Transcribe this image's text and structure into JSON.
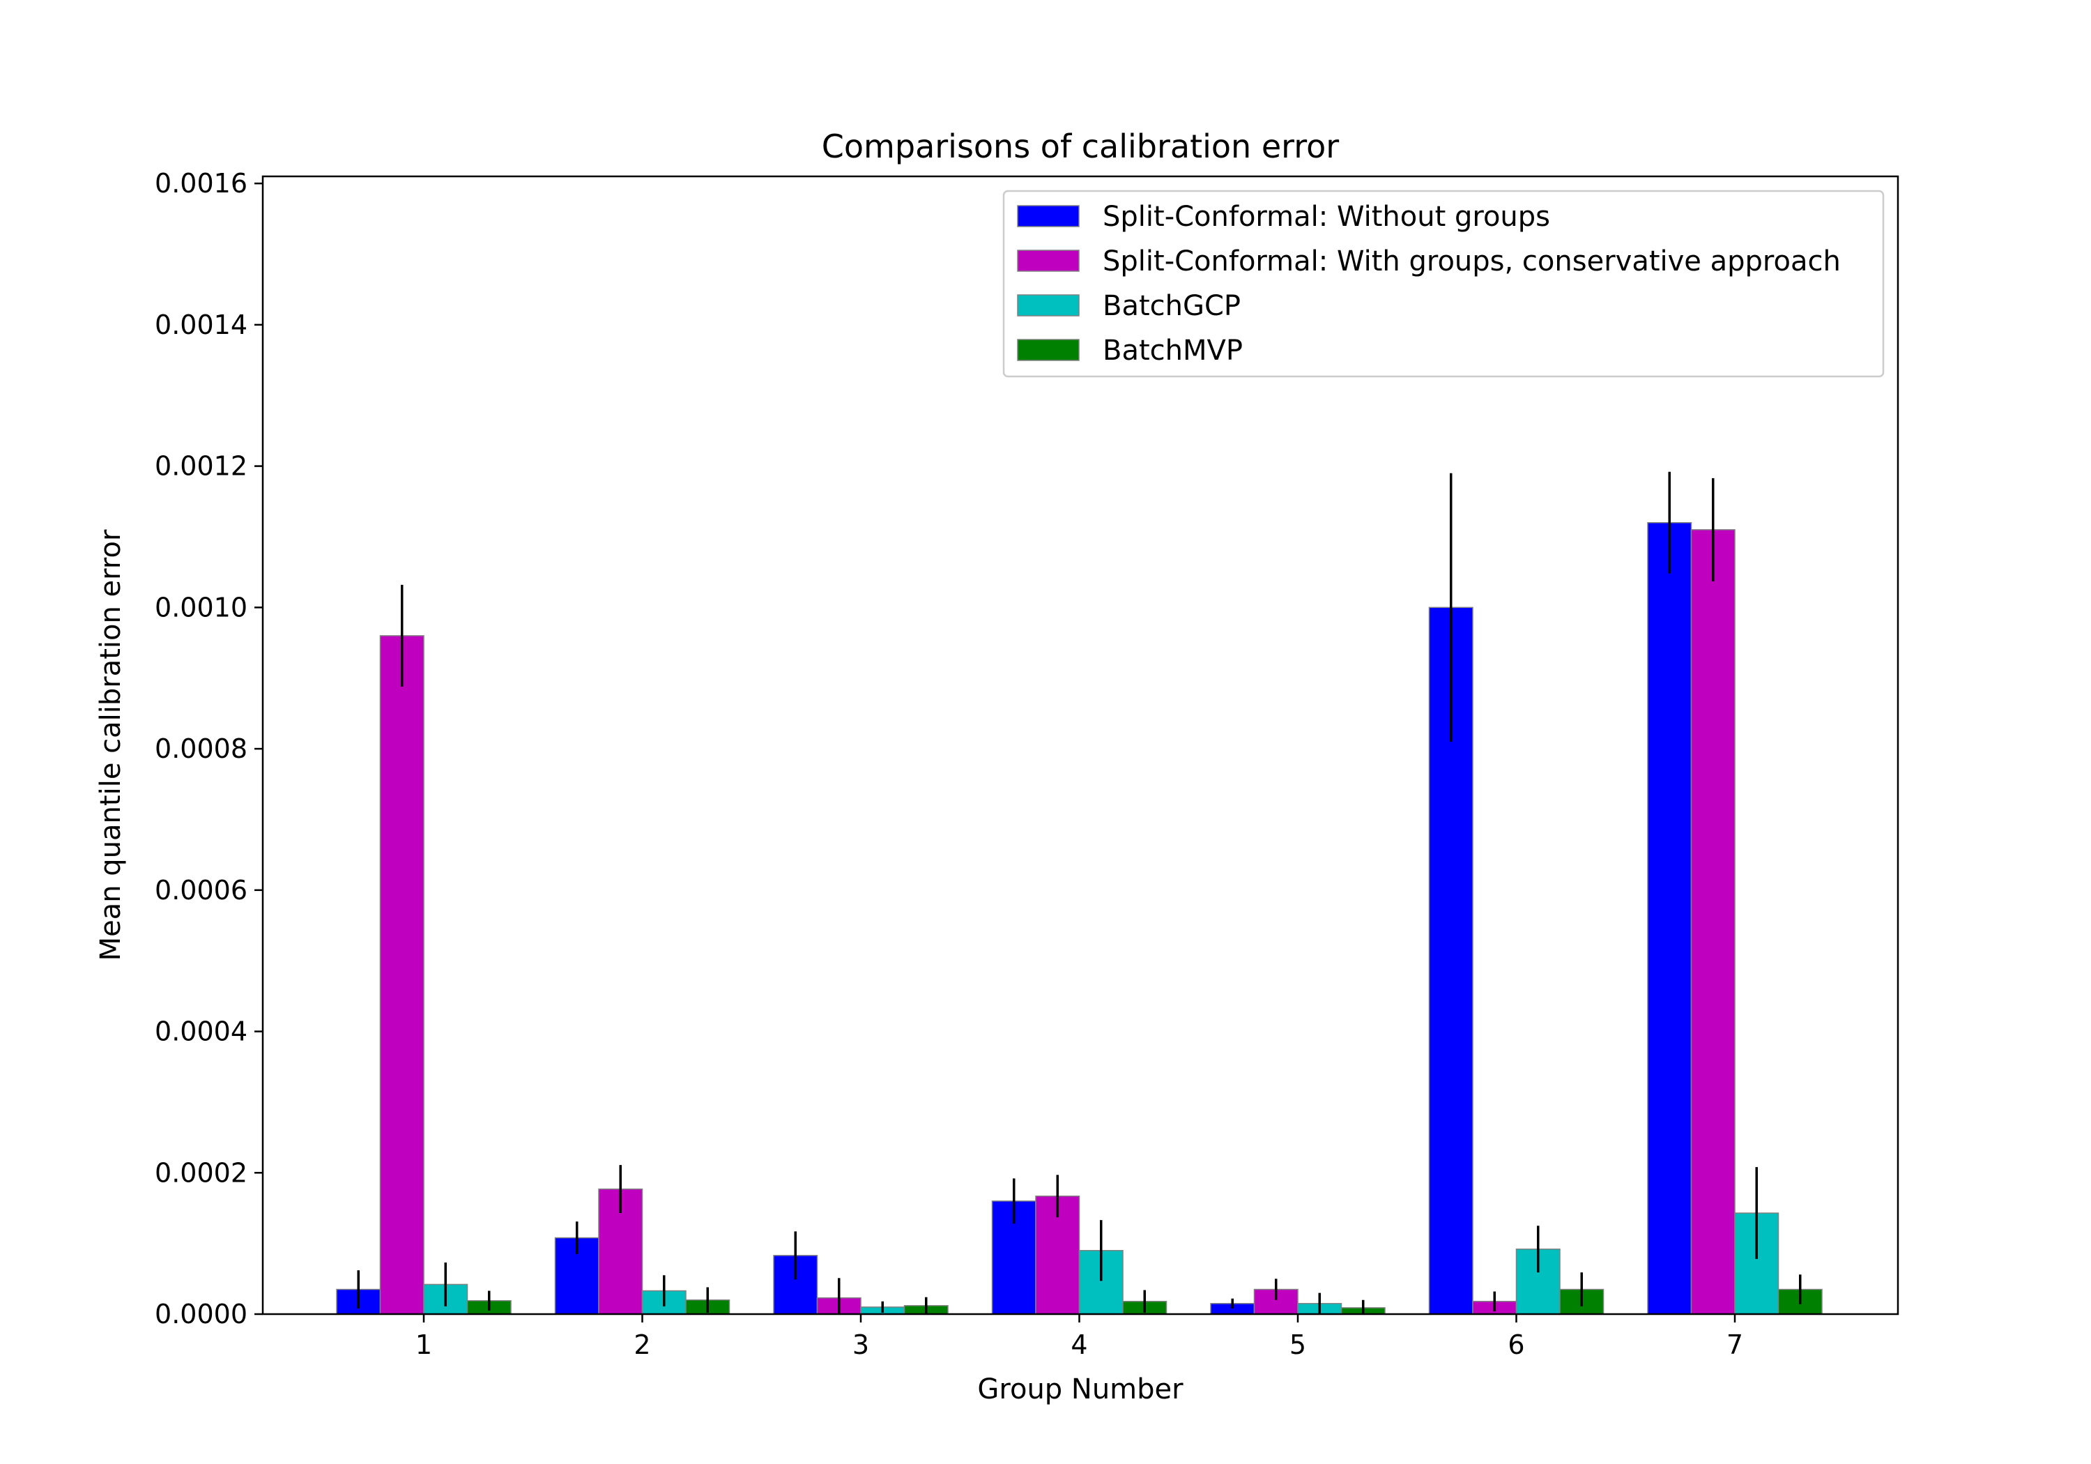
{
  "chart_data": {
    "type": "bar",
    "title": "Comparisons of calibration error",
    "xlabel": "Group Number",
    "ylabel": "Mean quantile calibration error",
    "categories": [
      "1",
      "2",
      "3",
      "4",
      "5",
      "6",
      "7"
    ],
    "ylim": [
      0,
      0.00161
    ],
    "yticks": [
      0,
      0.0002,
      0.0004,
      0.0006,
      0.0008,
      0.001,
      0.0012,
      0.0014,
      0.0016
    ],
    "ytick_labels": [
      "0.0000",
      "0.0002",
      "0.0004",
      "0.0006",
      "0.0008",
      "0.0010",
      "0.0012",
      "0.0014",
      "0.0016"
    ],
    "legend_position": "top-right",
    "grid": false,
    "series": [
      {
        "name": "Split-Conformal: Without groups",
        "color": "#0000ff",
        "values": [
          3.5e-05,
          0.000108,
          8.3e-05,
          0.00016,
          1.5e-05,
          0.001,
          0.00112
        ],
        "errors": [
          2.7e-05,
          2.3e-05,
          3.4e-05,
          3.2e-05,
          7e-06,
          0.00019,
          7.2e-05
        ]
      },
      {
        "name": "Split-Conformal: With groups, conservative approach",
        "color": "#bf00bf",
        "values": [
          0.00096,
          0.000177,
          2.3e-05,
          0.000167,
          3.5e-05,
          1.8e-05,
          0.00111
        ],
        "errors": [
          7.2e-05,
          3.4e-05,
          2.8e-05,
          3e-05,
          1.5e-05,
          1.4e-05,
          7.3e-05
        ]
      },
      {
        "name": "BatchGCP",
        "color": "#00bfbf",
        "values": [
          4.2e-05,
          3.3e-05,
          1e-05,
          9e-05,
          1.5e-05,
          9.2e-05,
          0.000143
        ],
        "errors": [
          3.1e-05,
          2.2e-05,
          8e-06,
          4.3e-05,
          1.5e-05,
          3.3e-05,
          6.5e-05
        ]
      },
      {
        "name": "BatchMVP",
        "color": "#008000",
        "values": [
          1.9e-05,
          2e-05,
          1.2e-05,
          1.8e-05,
          9e-06,
          3.5e-05,
          3.5e-05
        ],
        "errors": [
          1.4e-05,
          1.8e-05,
          1.2e-05,
          1.6e-05,
          1.1e-05,
          2.4e-05,
          2.1e-05
        ]
      }
    ]
  }
}
